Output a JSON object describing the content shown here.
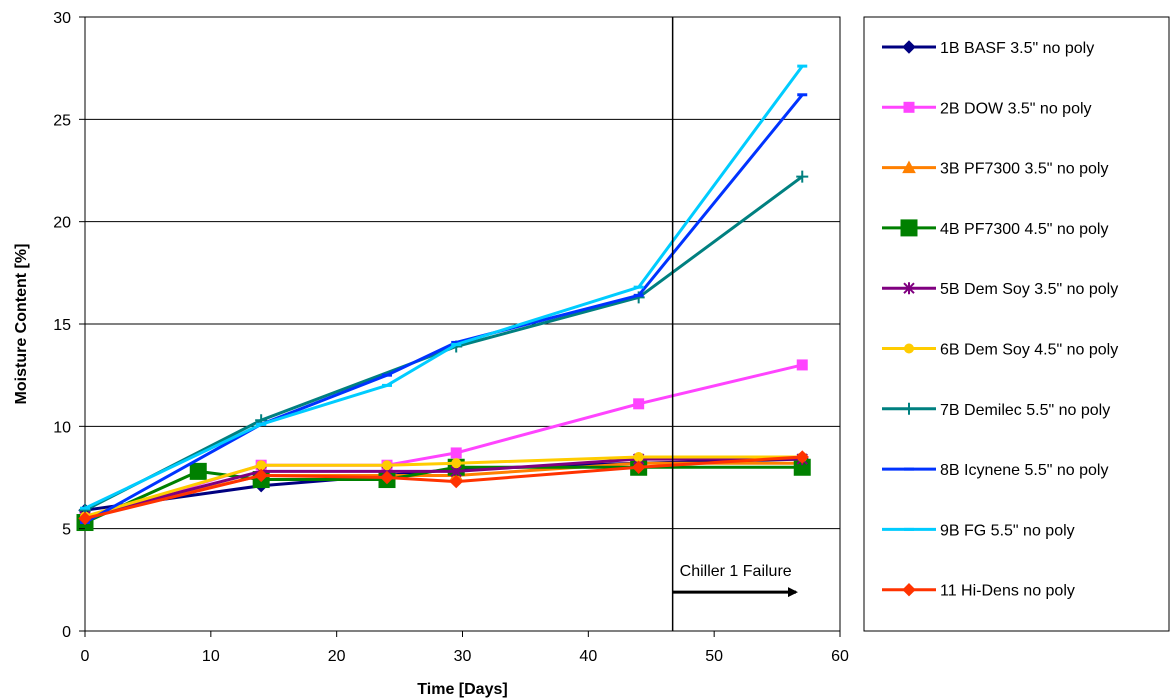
{
  "chart_data": {
    "type": "line",
    "title": "",
    "xlabel": "Time [Days]",
    "ylabel": "Moisture Content [%]",
    "xlim": [
      0,
      60
    ],
    "ylim": [
      0,
      30
    ],
    "xticks": [
      0,
      10,
      20,
      30,
      40,
      50,
      60
    ],
    "yticks": [
      0,
      5,
      10,
      15,
      20,
      25,
      30
    ],
    "grid": "horizontal",
    "legend_position": "right",
    "annotation": {
      "text": "Chiller 1 Failure",
      "vline_x": 46.7,
      "arrow_from_x": 46.7,
      "arrow_to_x": 56.5,
      "arrow_y": 1.9
    },
    "series": [
      {
        "name": "1B BASF 3.5\" no poly",
        "color": "#000080",
        "marker": "diamond",
        "x": [
          0,
          14,
          24,
          29.5,
          44,
          57
        ],
        "y": [
          5.9,
          7.1,
          7.6,
          7.9,
          8.2,
          8.4
        ]
      },
      {
        "name": "2B DOW 3.5\" no poly",
        "color": "#FF44FF",
        "marker": "square",
        "x": [
          0,
          14,
          24,
          29.5,
          44,
          57
        ],
        "y": [
          5.5,
          8.1,
          8.1,
          8.7,
          11.1,
          13.0
        ]
      },
      {
        "name": "3B PF7300 3.5\" no poly",
        "color": "#FF8000",
        "marker": "triangle",
        "x": [
          0,
          14,
          24,
          29.5,
          44,
          57
        ],
        "y": [
          5.6,
          7.6,
          7.6,
          7.6,
          8.2,
          8.2
        ]
      },
      {
        "name": "4B PF7300 4.5\" no poly",
        "color": "#008000",
        "marker": "bigsquare",
        "x": [
          0,
          9,
          14,
          24,
          29.5,
          44,
          57
        ],
        "y": [
          5.3,
          7.8,
          7.4,
          7.4,
          8.0,
          8.0,
          8.0
        ]
      },
      {
        "name": "5B Dem Soy 3.5\" no poly",
        "color": "#800080",
        "marker": "asterisk",
        "x": [
          0,
          14,
          24,
          29.5,
          44,
          57
        ],
        "y": [
          5.6,
          7.8,
          7.8,
          7.8,
          8.4,
          8.4
        ]
      },
      {
        "name": "6B Dem Soy 4.5\" no poly",
        "color": "#FFCC00",
        "marker": "circle",
        "x": [
          0,
          14,
          24,
          29.5,
          44,
          57
        ],
        "y": [
          5.6,
          8.1,
          8.1,
          8.2,
          8.5,
          8.5
        ]
      },
      {
        "name": "7B Demilec 5.5\" no poly",
        "color": "#008080",
        "marker": "plus",
        "x": [
          0,
          14,
          29.5,
          44,
          57
        ],
        "y": [
          5.9,
          10.3,
          13.9,
          16.3,
          22.2
        ]
      },
      {
        "name": "8B Icynene 5.5\" no poly",
        "color": "#0033FF",
        "marker": "dash",
        "x": [
          0,
          14,
          24,
          29.5,
          44,
          57
        ],
        "y": [
          5.3,
          10.1,
          12.5,
          14.1,
          16.4,
          26.2
        ]
      },
      {
        "name": "9B FG 5.5\" no poly",
        "color": "#00CCFF",
        "marker": "dash",
        "x": [
          0,
          14,
          24,
          29.5,
          44,
          57
        ],
        "y": [
          6.0,
          10.1,
          12.0,
          14.0,
          16.8,
          27.6
        ]
      },
      {
        "name": "11 Hi-Dens no poly",
        "color": "#FF3300",
        "marker": "diamond",
        "x": [
          0,
          14,
          24,
          29.5,
          44,
          57
        ],
        "y": [
          5.5,
          7.6,
          7.5,
          7.3,
          8.0,
          8.5
        ]
      }
    ]
  }
}
